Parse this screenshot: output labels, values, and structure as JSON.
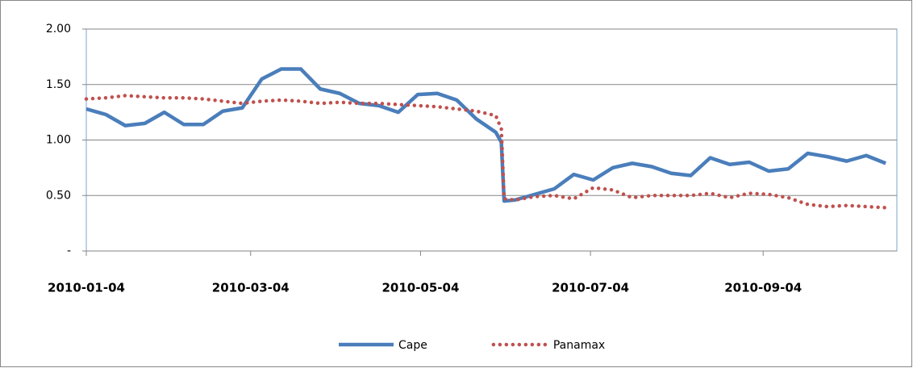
{
  "chart_data": {
    "type": "line",
    "x": [
      "2010-01-04",
      "2010-01-11",
      "2010-01-18",
      "2010-01-25",
      "2010-02-01",
      "2010-02-08",
      "2010-02-15",
      "2010-02-22",
      "2010-03-01",
      "2010-03-08",
      "2010-03-15",
      "2010-03-22",
      "2010-03-29",
      "2010-04-05",
      "2010-04-12",
      "2010-04-19",
      "2010-04-26",
      "2010-05-03",
      "2010-05-10",
      "2010-05-17",
      "2010-05-24",
      "2010-05-31",
      "2010-06-02",
      "2010-06-03",
      "2010-06-07",
      "2010-06-14",
      "2010-06-21",
      "2010-06-28",
      "2010-07-05",
      "2010-07-12",
      "2010-07-19",
      "2010-07-26",
      "2010-08-02",
      "2010-08-09",
      "2010-08-16",
      "2010-08-23",
      "2010-08-30",
      "2010-09-06",
      "2010-09-13",
      "2010-09-20",
      "2010-09-27",
      "2010-10-04",
      "2010-10-11",
      "2010-10-18"
    ],
    "series": [
      {
        "name": "Cape",
        "color": "#4a7ebb",
        "line_style": "solid",
        "values": [
          1.28,
          1.23,
          1.13,
          1.15,
          1.25,
          1.14,
          1.14,
          1.26,
          1.29,
          1.55,
          1.64,
          1.64,
          1.46,
          1.42,
          1.33,
          1.31,
          1.25,
          1.41,
          1.42,
          1.36,
          1.19,
          1.07,
          0.98,
          0.45,
          0.46,
          0.51,
          0.56,
          0.69,
          0.64,
          0.75,
          0.79,
          0.76,
          0.7,
          0.68,
          0.84,
          0.78,
          0.8,
          0.72,
          0.74,
          0.88,
          0.85,
          0.81,
          0.86,
          0.79
        ]
      },
      {
        "name": "Panamax",
        "color": "#c0504d",
        "line_style": "dotted",
        "values": [
          1.37,
          1.38,
          1.4,
          1.39,
          1.38,
          1.38,
          1.37,
          1.35,
          1.33,
          1.35,
          1.36,
          1.35,
          1.33,
          1.34,
          1.33,
          1.33,
          1.32,
          1.31,
          1.3,
          1.28,
          1.26,
          1.22,
          1.1,
          0.47,
          0.46,
          0.49,
          0.5,
          0.47,
          0.57,
          0.55,
          0.48,
          0.5,
          0.5,
          0.5,
          0.52,
          0.48,
          0.52,
          0.51,
          0.48,
          0.42,
          0.4,
          0.41,
          0.4,
          0.39
        ]
      }
    ],
    "xlim": [
      "2010-01-04",
      "2010-10-22"
    ],
    "xticks": [
      "2010-01-04",
      "2010-03-04",
      "2010-05-04",
      "2010-07-04",
      "2010-09-04"
    ],
    "ylim": [
      0,
      2
    ],
    "yticks": [
      {
        "value": 0,
        "label": "-"
      },
      {
        "value": 0.5,
        "label": "0.50"
      },
      {
        "value": 1,
        "label": "1.00"
      },
      {
        "value": 1.5,
        "label": "1.50"
      },
      {
        "value": 2,
        "label": "2.00"
      }
    ],
    "grid": true,
    "legend": "bottom"
  }
}
